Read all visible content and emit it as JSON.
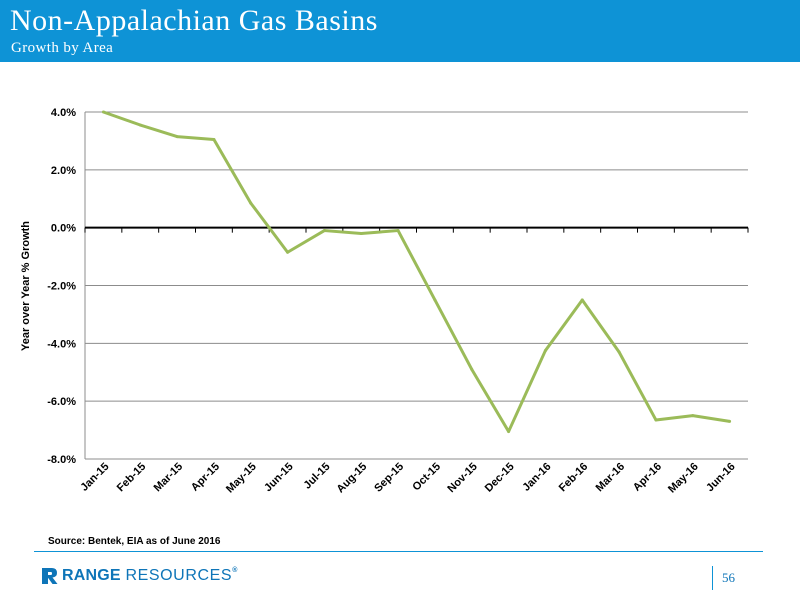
{
  "header": {
    "title": "Non-Appalachian Gas Basins",
    "subtitle": "Growth by Area"
  },
  "chart_data": {
    "type": "line",
    "categories": [
      "Jan-15",
      "Feb-15",
      "Mar-15",
      "Apr-15",
      "May-15",
      "Jun-15",
      "Jul-15",
      "Aug-15",
      "Sep-15",
      "Oct-15",
      "Nov-15",
      "Dec-15",
      "Jan-16",
      "Feb-16",
      "Mar-16",
      "Apr-16",
      "May-16",
      "Jun-16"
    ],
    "series": [
      {
        "values": [
          4.0,
          3.55,
          3.15,
          3.05,
          0.85,
          -0.85,
          -0.1,
          -0.2,
          -0.1,
          -2.5,
          -4.9,
          -7.05,
          -4.25,
          -2.5,
          -4.3,
          -6.65,
          -6.5,
          -6.7
        ]
      }
    ],
    "ylabel": "Year over Year % Growth",
    "xlabel": "",
    "ylim": [
      -8,
      4
    ],
    "yticks": [
      4,
      2,
      0,
      -2,
      -4,
      -6,
      -8
    ],
    "ytick_labels": [
      "4.0%",
      "2.0%",
      "0.0%",
      "-2.0%",
      "-4.0%",
      "-6.0%",
      "-8.0%"
    ],
    "grid": true,
    "zero_line": true,
    "line_color": "#9bbb59"
  },
  "footer": {
    "source": "Source: Bentek, EIA as of June 2016",
    "logo_bold": "RANGE",
    "logo_light": "RESOURCES",
    "logo_reg": "®",
    "page_number": "56"
  },
  "colors": {
    "brand_blue": "#0e93d6"
  }
}
